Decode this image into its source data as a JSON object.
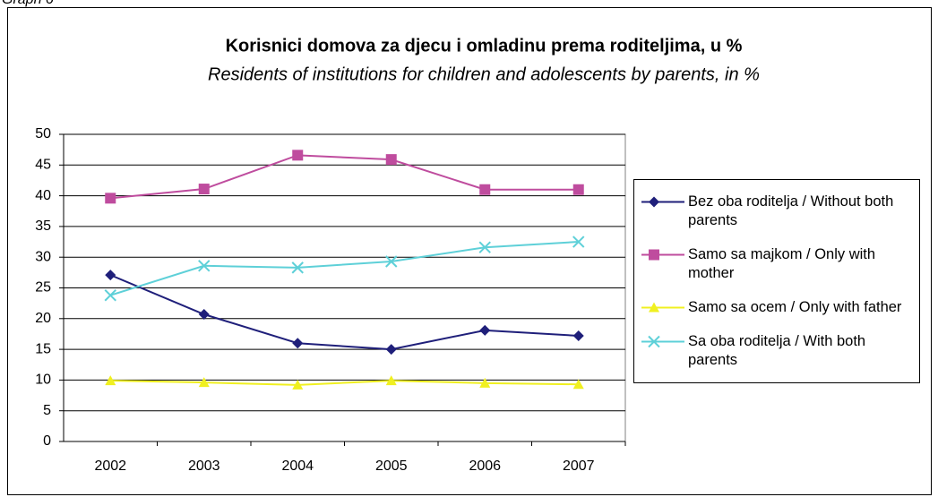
{
  "caption": "Graph 6",
  "chart_data": {
    "type": "line",
    "title": "Korisnici domova za djecu i omladinu prema roditeljima, u %",
    "subtitle": "Residents of institutions for children and adolescents by parents, in %",
    "categories": [
      "2002",
      "2003",
      "2004",
      "2005",
      "2006",
      "2007"
    ],
    "series": [
      {
        "name": "Bez oba roditelja / Without both parents",
        "color": "#1f1f7a",
        "marker": "diamond",
        "values": [
          27.1,
          20.7,
          16.0,
          15.0,
          18.1,
          17.2
        ]
      },
      {
        "name": "Samo sa majkom / Only with mother",
        "color": "#bf4c9e",
        "marker": "square",
        "values": [
          39.6,
          41.1,
          46.6,
          45.9,
          41.0,
          41.0
        ]
      },
      {
        "name": "Samo sa ocem / Only with father",
        "color": "#f0f020",
        "marker": "triangle",
        "values": [
          9.9,
          9.6,
          9.2,
          9.9,
          9.5,
          9.3
        ]
      },
      {
        "name": "Sa oba roditelja / With both parents",
        "color": "#5ed0d8",
        "marker": "x",
        "values": [
          23.8,
          28.6,
          28.3,
          29.3,
          31.6,
          32.5
        ]
      }
    ],
    "ylim": [
      0,
      50
    ],
    "yticks": [
      0,
      5,
      10,
      15,
      20,
      25,
      30,
      35,
      40,
      45,
      50
    ],
    "grid": true
  }
}
